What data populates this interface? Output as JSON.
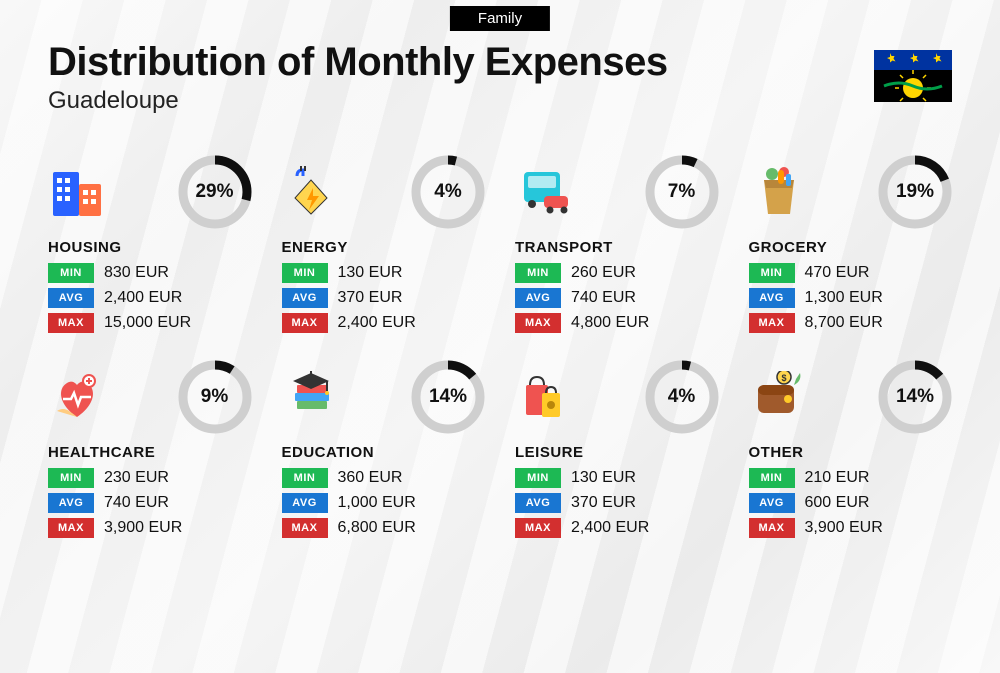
{
  "header": {
    "badge": "Family",
    "title": "Distribution of Monthly Expenses",
    "subtitle": "Guadeloupe"
  },
  "labels": {
    "min": "MIN",
    "avg": "AVG",
    "max": "MAX"
  },
  "colors": {
    "min_bg": "#1db954",
    "avg_bg": "#1976d2",
    "max_bg": "#d32f2f",
    "donut_fg": "#0f0f0f",
    "donut_bg": "#cfcfcf",
    "badge_bg": "#000000",
    "text": "#111111"
  },
  "donut": {
    "radius": 32,
    "stroke_width": 9,
    "circumference": 201.06
  },
  "flag": {
    "top_bg": "#0033a0",
    "fleur_color": "#ffd500",
    "bottom_bg": "#000000",
    "sun_color": "#ffd500",
    "band_color": "#009e49"
  },
  "categories": [
    {
      "id": "housing",
      "name": "HOUSING",
      "percent": 29,
      "min": "830 EUR",
      "avg": "2,400 EUR",
      "max": "15,000 EUR",
      "icon": "buildings"
    },
    {
      "id": "energy",
      "name": "ENERGY",
      "percent": 4,
      "min": "130 EUR",
      "avg": "370 EUR",
      "max": "2,400 EUR",
      "icon": "energy"
    },
    {
      "id": "transport",
      "name": "TRANSPORT",
      "percent": 7,
      "min": "260 EUR",
      "avg": "740 EUR",
      "max": "4,800 EUR",
      "icon": "transport"
    },
    {
      "id": "grocery",
      "name": "GROCERY",
      "percent": 19,
      "min": "470 EUR",
      "avg": "1,300 EUR",
      "max": "8,700 EUR",
      "icon": "grocery"
    },
    {
      "id": "healthcare",
      "name": "HEALTHCARE",
      "percent": 9,
      "min": "230 EUR",
      "avg": "740 EUR",
      "max": "3,900 EUR",
      "icon": "healthcare"
    },
    {
      "id": "education",
      "name": "EDUCATION",
      "percent": 14,
      "min": "360 EUR",
      "avg": "1,000 EUR",
      "max": "6,800 EUR",
      "icon": "education"
    },
    {
      "id": "leisure",
      "name": "LEISURE",
      "percent": 4,
      "min": "130 EUR",
      "avg": "370 EUR",
      "max": "2,400 EUR",
      "icon": "leisure"
    },
    {
      "id": "other",
      "name": "OTHER",
      "percent": 14,
      "min": "210 EUR",
      "avg": "600 EUR",
      "max": "3,900 EUR",
      "icon": "other"
    }
  ]
}
